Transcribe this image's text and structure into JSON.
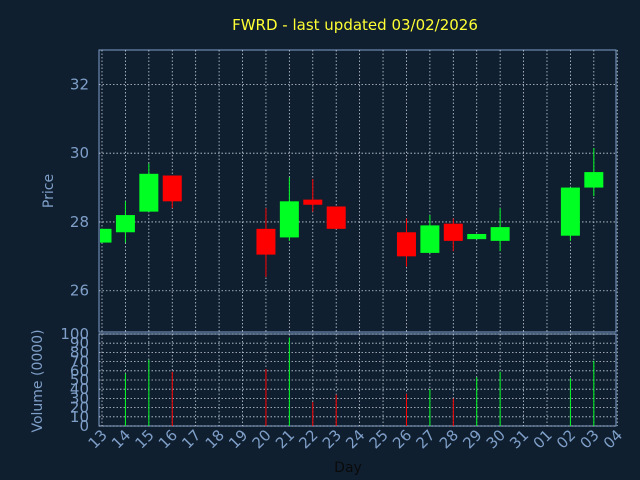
{
  "chart_data": {
    "type": "candlestick",
    "title": "FWRD - last updated 03/02/2026",
    "xlabel": "Day",
    "price_panel": {
      "ylabel": "Price",
      "ylim": [
        24.8,
        33.0
      ],
      "yticks": [
        26,
        28,
        30,
        32
      ],
      "grid": true
    },
    "volume_panel": {
      "ylabel": "Volume (0000)",
      "ylim": [
        0,
        100
      ],
      "yticks": [
        0,
        10,
        20,
        30,
        40,
        50,
        60,
        70,
        80,
        90,
        100
      ]
    },
    "x_ticks": [
      "13",
      "14",
      "15",
      "16",
      "17",
      "18",
      "19",
      "20",
      "21",
      "22",
      "23",
      "24",
      "25",
      "26",
      "27",
      "28",
      "29",
      "30",
      "31",
      "01",
      "02",
      "03",
      "04"
    ],
    "candles": [
      {
        "x": "13",
        "open": 27.4,
        "high": 27.8,
        "low": 27.4,
        "close": 27.8,
        "volume": 0
      },
      {
        "x": "14",
        "open": 27.7,
        "high": 28.6,
        "low": 27.4,
        "close": 28.2,
        "volume": 57
      },
      {
        "x": "15",
        "open": 28.3,
        "high": 29.7,
        "low": 28.3,
        "close": 29.4,
        "volume": 72
      },
      {
        "x": "16",
        "open": 29.35,
        "high": 29.35,
        "low": 28.4,
        "close": 28.6,
        "volume": 59
      },
      {
        "x": "20",
        "open": 27.8,
        "high": 28.4,
        "low": 26.4,
        "close": 27.05,
        "volume": 62
      },
      {
        "x": "21",
        "open": 27.55,
        "high": 29.3,
        "low": 27.45,
        "close": 28.6,
        "volume": 96
      },
      {
        "x": "22",
        "open": 28.65,
        "high": 29.25,
        "low": 28.3,
        "close": 28.5,
        "volume": 26
      },
      {
        "x": "23",
        "open": 28.45,
        "high": 28.45,
        "low": 27.8,
        "close": 27.8,
        "volume": 34
      },
      {
        "x": "26",
        "open": 27.7,
        "high": 28.1,
        "low": 26.7,
        "close": 27.0,
        "volume": 35
      },
      {
        "x": "27",
        "open": 27.1,
        "high": 28.2,
        "low": 27.1,
        "close": 27.9,
        "volume": 40
      },
      {
        "x": "28",
        "open": 27.95,
        "high": 28.1,
        "low": 27.15,
        "close": 27.45,
        "volume": 30
      },
      {
        "x": "29",
        "open": 27.5,
        "high": 27.65,
        "low": 27.5,
        "close": 27.65,
        "volume": 53
      },
      {
        "x": "30",
        "open": 27.45,
        "high": 28.4,
        "low": 27.15,
        "close": 27.85,
        "volume": 59
      },
      {
        "x": "02",
        "open": 27.6,
        "high": 29.0,
        "low": 27.45,
        "close": 29.0,
        "volume": 52
      },
      {
        "x": "03",
        "open": 29.0,
        "high": 30.15,
        "low": 28.75,
        "close": 29.45,
        "volume": 71
      }
    ],
    "colors": {
      "background": "#0f1f30",
      "axis_text": "#7f9fc8",
      "title": "#ffff33",
      "xlabel": "#0a0a0a",
      "grid": "#c8d2dc",
      "up": "#00ff22",
      "down": "#ff0000"
    }
  }
}
